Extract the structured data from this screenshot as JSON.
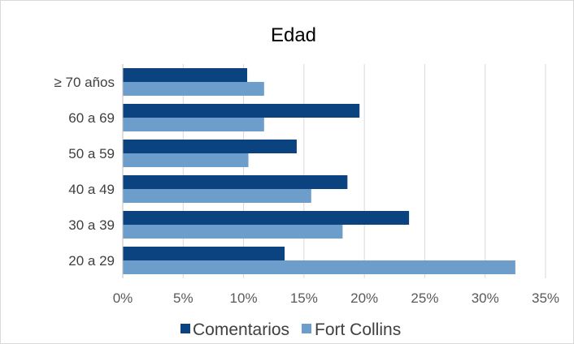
{
  "chart_data": {
    "type": "bar",
    "orientation": "horizontal",
    "title": "Edad",
    "categories": [
      "20 a 29",
      "30 a 39",
      "40 a 49",
      "50 a 59",
      "60 a 69",
      "≥ 70 años"
    ],
    "series": [
      {
        "name": "Comentarios",
        "color": "#0b4381",
        "values": [
          13.4,
          23.7,
          18.6,
          14.4,
          19.6,
          10.3
        ]
      },
      {
        "name": "Fort Collins",
        "color": "#6c9dcb",
        "values": [
          32.5,
          18.2,
          15.6,
          10.4,
          11.7,
          11.7
        ]
      }
    ],
    "x_ticks": [
      "0%",
      "5%",
      "10%",
      "15%",
      "20%",
      "25%",
      "30%",
      "35%"
    ],
    "xlim": [
      0,
      35
    ],
    "grid": "vertical",
    "legend_position": "bottom",
    "xlabel": "",
    "ylabel": ""
  },
  "colors": {
    "gridline": "#d9d9d9",
    "axis": "#bfbfbf"
  }
}
